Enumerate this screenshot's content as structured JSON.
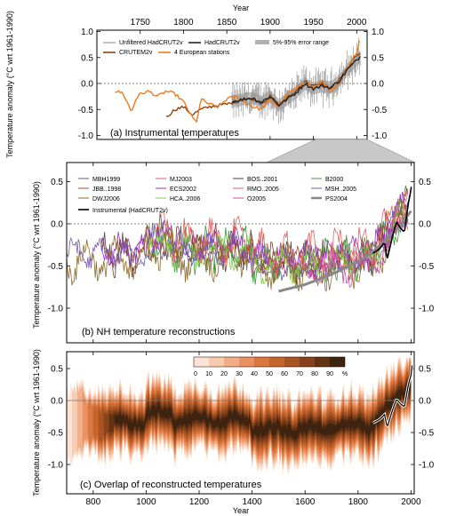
{
  "figure": {
    "top_axis_label": "Year",
    "bottom_axis_label": "Year",
    "ylabel": "Temperature anomaly  (°C wrt 1961-1990)"
  },
  "chart_data": [
    {
      "type": "line",
      "panel": "a",
      "title": "(a) Instrumental temperatures",
      "xlabel": "Year",
      "ylabel": "Temperature anomaly  (°C wrt 1961-1990)",
      "xlim": [
        1700,
        2012
      ],
      "ylim": [
        -1.0,
        1.0
      ],
      "x_ticks": [
        1750,
        1800,
        1850,
        1900,
        1950,
        2000
      ],
      "x_tick_labels": [
        "1750",
        "1800",
        "1850",
        "1900",
        "1950",
        "2000"
      ],
      "y_ticks": [
        1.0,
        0.5,
        0.0,
        -0.5,
        -1.0
      ],
      "y_tick_labels": [
        "1.0",
        "0.5",
        "0.0",
        "-0.5",
        "-1.0"
      ],
      "legend": [
        {
          "label": "Unfiltered HadCRUT2v",
          "color": "#9a9a9a"
        },
        {
          "label": "HadCRUT2v",
          "color": "#222222"
        },
        {
          "label": "5%-95% error range",
          "color": "#b0b0b0"
        },
        {
          "label": "CRUTEM2v",
          "color": "#8b4513"
        },
        {
          "label": "4 European stations",
          "color": "#f07a1a"
        }
      ],
      "series": [
        {
          "name": "HadCRUT2v",
          "color": "#222222",
          "x": [
            1856,
            1870,
            1880,
            1890,
            1900,
            1910,
            1920,
            1930,
            1940,
            1950,
            1960,
            1970,
            1980,
            1990,
            2000,
            2004
          ],
          "y": [
            -0.35,
            -0.3,
            -0.28,
            -0.36,
            -0.25,
            -0.42,
            -0.3,
            -0.18,
            0.0,
            -0.1,
            -0.05,
            -0.08,
            0.05,
            0.28,
            0.45,
            0.52
          ]
        },
        {
          "name": "CRUTEM2v",
          "color": "#8b4513",
          "x": [
            1780,
            1790,
            1800,
            1810,
            1820,
            1830,
            1840,
            1850,
            1860,
            1870,
            1880,
            1890,
            1900,
            1910,
            1920,
            1930,
            1940,
            1950,
            1960,
            1970,
            1980,
            1990,
            2000,
            2004
          ],
          "y": [
            -0.65,
            -0.5,
            -0.45,
            -0.6,
            -0.5,
            -0.45,
            -0.42,
            -0.4,
            -0.35,
            -0.3,
            -0.3,
            -0.38,
            -0.25,
            -0.4,
            -0.28,
            -0.15,
            0.05,
            -0.05,
            0.0,
            -0.1,
            0.08,
            0.3,
            0.55,
            0.6
          ]
        },
        {
          "name": "4 European stations",
          "color": "#f07a1a",
          "x": [
            1721,
            1730,
            1740,
            1745,
            1750,
            1760,
            1770,
            1780,
            1790,
            1800,
            1810,
            1815,
            1820,
            1830,
            1840,
            1850,
            1860,
            1870,
            1880,
            1890,
            1900,
            1910,
            1920,
            1930,
            1940,
            1950,
            1960,
            1970,
            1980,
            1990,
            2000,
            2004
          ],
          "y": [
            -0.15,
            -0.18,
            -0.55,
            -0.3,
            -0.2,
            -0.15,
            -0.25,
            -0.15,
            -0.2,
            -0.35,
            -0.65,
            -0.75,
            -0.3,
            -0.4,
            -0.45,
            -0.3,
            -0.25,
            -0.35,
            -0.45,
            -0.5,
            -0.3,
            -0.45,
            -0.2,
            -0.1,
            0.05,
            -0.1,
            0.05,
            -0.15,
            0.0,
            0.3,
            0.6,
            0.9
          ]
        }
      ]
    },
    {
      "type": "line",
      "panel": "b",
      "title": "(b) NH temperature reconstructions",
      "xlabel": "",
      "ylabel": "Temperature anomaly  (°C wrt 1961-1990)",
      "xlim": [
        700,
        2012
      ],
      "ylim": [
        -1.3,
        0.7
      ],
      "y_ticks": [
        0.5,
        0.0,
        -0.5,
        -1.0
      ],
      "y_tick_labels": [
        "0.5",
        "0.0",
        "-0.5",
        "-1.0"
      ],
      "x_ticks": [
        800,
        1000,
        1200,
        1400,
        1600,
        1800,
        2000
      ],
      "legend": [
        {
          "label": "MBH1999",
          "color": "#5a5ab4"
        },
        {
          "label": "MJ2003",
          "color": "#e05a5a"
        },
        {
          "label": "BOS..2001",
          "color": "#6b3a3a"
        },
        {
          "label": "B2000",
          "color": "#3aa03a"
        },
        {
          "label": "JBB..1998",
          "color": "#a04a4a"
        },
        {
          "label": "ECS2002",
          "color": "#9b30c8"
        },
        {
          "label": "RMO..2005",
          "color": "#e06060"
        },
        {
          "label": "MSH..2005",
          "color": "#7a5ab4"
        },
        {
          "label": "DWJ2006",
          "color": "#8c6a2a"
        },
        {
          "label": "HCA..2006",
          "color": "#8bc84b"
        },
        {
          "label": "O2005",
          "color": "#d44aa0"
        },
        {
          "label": "PS2004",
          "color": "#888888"
        },
        {
          "label": "Instrumental (HadCRUT2v)",
          "color": "#000000"
        }
      ],
      "series": [
        {
          "name": "PS2004",
          "color": "#888888",
          "x": [
            1500,
            1600,
            1700,
            1800,
            1850,
            1900,
            1950,
            2000
          ],
          "y": [
            -0.8,
            -0.72,
            -0.6,
            -0.45,
            -0.35,
            -0.2,
            -0.05,
            0.15
          ]
        },
        {
          "name": "Instrumental (HadCRUT2v)",
          "color": "#000000",
          "x": [
            1856,
            1880,
            1900,
            1910,
            1930,
            1945,
            1960,
            1975,
            1990,
            2000,
            2004
          ],
          "y": [
            -0.35,
            -0.3,
            -0.22,
            -0.42,
            -0.15,
            0.02,
            -0.05,
            -0.1,
            0.25,
            0.4,
            0.55
          ]
        }
      ]
    },
    {
      "type": "heatmap",
      "panel": "c",
      "title": "(c) Overlap of reconstructed temperatures",
      "xlabel": "Year",
      "ylabel": "Temperature anomaly  (°C wrt 1961-1990)",
      "xlim": [
        700,
        2012
      ],
      "ylim": [
        -1.5,
        0.7
      ],
      "x_ticks": [
        800,
        1000,
        1200,
        1400,
        1600,
        1800,
        2000
      ],
      "x_tick_labels": [
        "800",
        "1000",
        "1200",
        "1400",
        "1600",
        "1800",
        "2000"
      ],
      "y_ticks": [
        0.5,
        0.0,
        -0.5,
        -1.0
      ],
      "y_tick_labels": [
        "0.5",
        "0.0",
        "-0.5",
        "-1.0"
      ],
      "colorbar": {
        "tick_labels": [
          "0",
          "10",
          "20",
          "30",
          "40",
          "50",
          "60",
          "70",
          "80",
          "90",
          "%"
        ],
        "colors": [
          "#fce4d4",
          "#f8cbb0",
          "#f2ad87",
          "#e98f60",
          "#d9773f",
          "#c4642c",
          "#a85324",
          "#86421c",
          "#633314",
          "#3c2410"
        ]
      }
    }
  ]
}
